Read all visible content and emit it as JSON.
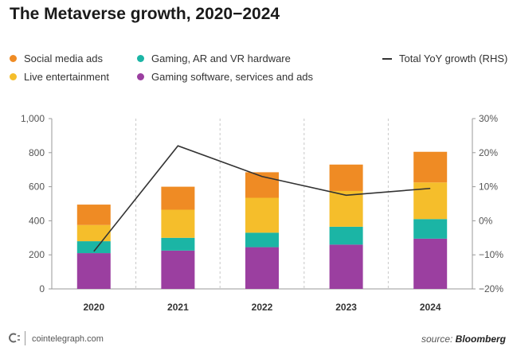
{
  "chart_data": {
    "type": "bar",
    "title": "The Metaverse growth, 2020−2024",
    "categories": [
      "2020",
      "2021",
      "2022",
      "2023",
      "2024"
    ],
    "stacked": true,
    "series": [
      {
        "name": "Gaming software, services and ads",
        "color": "#9b3fa0",
        "values": [
          210,
          225,
          245,
          260,
          295
        ]
      },
      {
        "name": "Gaming, AR and VR hardware",
        "color": "#1bb5a5",
        "values": [
          70,
          75,
          85,
          105,
          115
        ]
      },
      {
        "name": "Live entertainment",
        "color": "#f5be2b",
        "values": [
          95,
          165,
          205,
          210,
          215
        ]
      },
      {
        "name": "Social media ads",
        "color": "#ef8b24",
        "values": [
          120,
          135,
          150,
          155,
          180
        ]
      }
    ],
    "line_series": {
      "name": "Total YoY growth (RHS)",
      "color": "#333333",
      "axis": "right",
      "values": [
        -9,
        22,
        13,
        7.5,
        9.5
      ]
    },
    "y_left": {
      "range": [
        0,
        1000
      ],
      "ticks": [
        "0",
        "200",
        "400",
        "600",
        "800",
        "1,000"
      ],
      "tick_values": [
        0,
        200,
        400,
        600,
        800,
        1000
      ]
    },
    "y_right": {
      "range": [
        -20,
        30
      ],
      "ticks": [
        "−20%",
        "−10%",
        "0%",
        "10%",
        "20%",
        "30%"
      ],
      "tick_values": [
        -20,
        -10,
        0,
        10,
        20,
        30
      ]
    },
    "grid": "vertical-dashed",
    "legend_position": "top"
  },
  "legend": {
    "social": "Social media ads",
    "hardware": "Gaming, AR and VR hardware",
    "yoy": "Total YoY growth (RHS)",
    "live": "Live entertainment",
    "software": "Gaming software, services and ads"
  },
  "footer": {
    "site": "cointelegraph.com",
    "source_prefix": "source: ",
    "source_name": "Bloomberg"
  }
}
